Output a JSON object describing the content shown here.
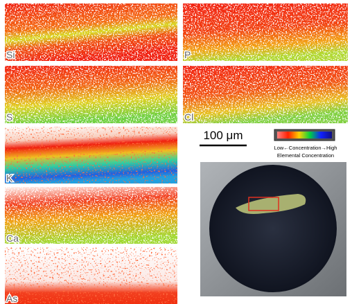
{
  "panels": [
    {
      "label": "Si"
    },
    {
      "label": "P"
    },
    {
      "label": "S"
    },
    {
      "label": "Cl"
    },
    {
      "label": "K"
    },
    {
      "label": "Ca"
    },
    {
      "label": "As"
    }
  ],
  "scale_bar": "100 μm",
  "colorbar": {
    "line1": "Low←Concentration→High",
    "line2": "Elemental Concentration"
  }
}
